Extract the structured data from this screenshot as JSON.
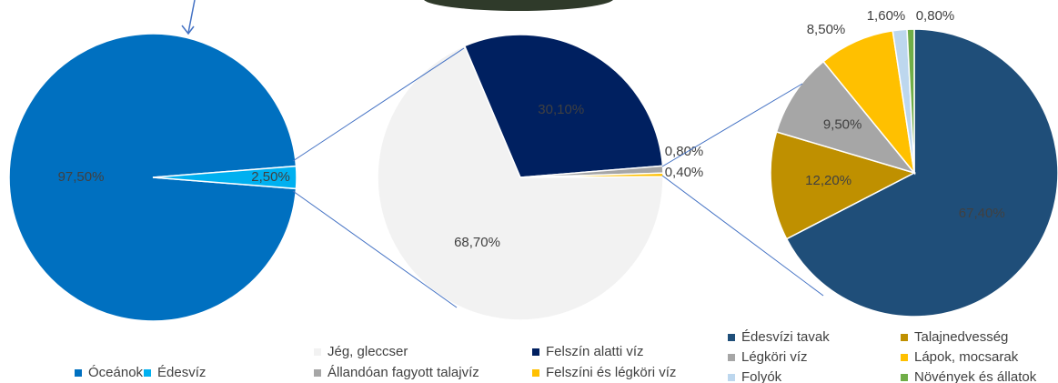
{
  "chart_data": [
    {
      "type": "pie",
      "categories": [
        "Óceánok",
        "Édesvíz"
      ],
      "values": [
        97.5,
        2.5
      ],
      "value_labels": [
        "97,50%",
        "2,50%"
      ],
      "colors": [
        "#0070c0",
        "#00b0f0"
      ]
    },
    {
      "type": "pie",
      "categories": [
        "Jég, gleccser",
        "Felszín alatti víz",
        "Állandóan fagyott talajvíz",
        "Felszíni és légköri víz"
      ],
      "values": [
        68.7,
        30.1,
        0.8,
        0.4
      ],
      "value_labels": [
        "68,70%",
        "30,10%",
        "0,80%",
        "0,40%"
      ],
      "colors": [
        "#f2f2f2",
        "#002060",
        "#a6a6a6",
        "#ffc000"
      ]
    },
    {
      "type": "pie",
      "categories": [
        "Édesvízi tavak",
        "Talajnedvesség",
        "Légköri víz",
        "Lápok, mocsarak",
        "Folyók",
        "Növények és állatok"
      ],
      "values": [
        67.4,
        12.2,
        9.5,
        8.5,
        1.6,
        0.8
      ],
      "value_labels": [
        "67,40%",
        "12,20%",
        "9,50%",
        "8,50%",
        "1,60%",
        "0,80%"
      ],
      "colors": [
        "#1f4e79",
        "#bf9000",
        "#a6a6a6",
        "#ffc000",
        "#bdd7ee",
        "#70ad47"
      ]
    }
  ]
}
